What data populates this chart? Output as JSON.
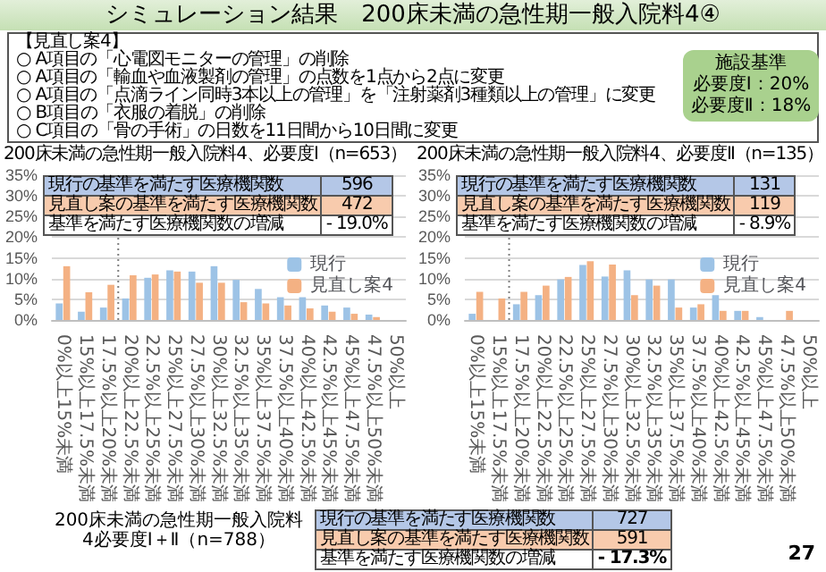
{
  "chart_data": [
    {
      "type": "other",
      "title": "シミュレーション結果　200床未満の急性期一般入院料4④",
      "annotations": [
        "【見直し案4】",
        "○ A項目の「心電図モニターの管理」の削除",
        "○ A項目の「輸血や血液製剤の管理」の点数を1点から2点に変更",
        "○ A項目の「点滴ライン同時3本以上の管理」を「注射薬剤3種類以上の管理」に変更",
        "○ B項目の「衣服の着脱」の削除",
        "○ C項目の「骨の手術」の日数を11日間から10日間に変更"
      ]
    },
    {
      "type": "other",
      "title": "施設基準",
      "annotations": [
        "必要度Ⅰ：20%",
        "必要度Ⅱ：18%"
      ]
    },
    {
      "type": "bar",
      "title": "200床未満の急性期一般入院料4、必要度Ⅰ（n=653）",
      "categories": [
        "0%以上15%未満",
        "15%以上17.5%未満",
        "17.5%以上20%未満",
        "20%以上22.5%未満",
        "22.5%以上25%未満",
        "25%以上27.5%未満",
        "27.5%以上30%未満",
        "30%以上32.5%未満",
        "32.5%以上35%未満",
        "35%以上37.5%未満",
        "37.5%以上40%未満",
        "40%以上42.5%未満",
        "42.5%以上45%未満",
        "45%以上47.5%未満",
        "47.5%以上50%未満",
        "50%以上"
      ],
      "series": [
        {
          "name": "現行",
          "color": "#9dc3e6",
          "values": [
            4,
            2,
            3,
            5.2,
            10.2,
            12,
            11.7,
            13,
            9.7,
            7.5,
            5.5,
            5.5,
            3.5,
            3,
            1.3,
            0
          ]
        },
        {
          "name": "見直し案4",
          "color": "#f4b183",
          "values": [
            13,
            6.7,
            8.5,
            10.8,
            11,
            11.7,
            9,
            9,
            4.3,
            4,
            3.5,
            2.8,
            2,
            1.5,
            0.7,
            0
          ]
        }
      ],
      "ylim": [
        0,
        35
      ],
      "yticks": [
        {
          "value": 0,
          "label": "0%"
        },
        {
          "value": 5,
          "label": "5%"
        },
        {
          "value": 10,
          "label": "10%"
        },
        {
          "value": 15,
          "label": "15%"
        },
        {
          "value": 20,
          "label": "20%"
        },
        {
          "value": 25,
          "label": "25%"
        },
        {
          "value": 30,
          "label": "30%"
        },
        {
          "value": 35,
          "label": "35%"
        }
      ],
      "grid": "y",
      "legend": "right",
      "ref_lines": [
        {
          "axis": "x",
          "value": "20%以上22.5%未満",
          "line_style": "dotted",
          "color": "#7f7f7f"
        }
      ],
      "annotations": [
        "現行の基準を満たす医療機関数",
        "596",
        "見直し案の基準を満たす医療機関数",
        "472",
        "基準を満たす医療機関数の増減",
        "- 19.0%"
      ]
    },
    {
      "type": "bar",
      "title": "200床未満の急性期一般入院料4、必要度Ⅱ（n=135）",
      "categories": [
        "0%以上15%未満",
        "15%以上17.5%未満",
        "17.5%以上20%未満",
        "20%以上22.5%未満",
        "22.5%以上25%未満",
        "25%以上27.5%未満",
        "27.5%以上30%未満",
        "30%以上32.5%未満",
        "32.5%以上35%未満",
        "35%以上37.5%未満",
        "37.5%以上40%未満",
        "40%以上42.5%未満",
        "42.5%以上45%未満",
        "45%以上47.5%未満",
        "47.5%以上50%未満",
        "50%以上"
      ],
      "series": [
        {
          "name": "現行",
          "color": "#9dc3e6",
          "values": [
            1.5,
            0,
            3.8,
            6,
            9.8,
            13.3,
            10.5,
            12,
            9.8,
            9.8,
            3,
            6,
            2.2,
            0.7,
            0,
            0
          ]
        },
        {
          "name": "見直し案4",
          "color": "#f4b183",
          "values": [
            6.8,
            5.2,
            6.8,
            8.3,
            10.4,
            14.2,
            13.4,
            6,
            8.3,
            3,
            3.8,
            2.2,
            2.2,
            0,
            2.2,
            0
          ]
        }
      ],
      "ylim": [
        0,
        35
      ],
      "yticks": [
        {
          "value": 0,
          "label": "0%"
        },
        {
          "value": 5,
          "label": "5%"
        },
        {
          "value": 10,
          "label": "10%"
        },
        {
          "value": 15,
          "label": "15%"
        },
        {
          "value": 20,
          "label": "20%"
        },
        {
          "value": 25,
          "label": "25%"
        },
        {
          "value": 30,
          "label": "30%"
        },
        {
          "value": 35,
          "label": "35%"
        }
      ],
      "grid": "y",
      "legend": "right",
      "ref_lines": [
        {
          "axis": "x",
          "value": "17.5%以上20%未満",
          "line_style": "dotted",
          "color": "#7f7f7f"
        }
      ],
      "annotations": [
        "現行の基準を満たす医療機関数",
        "131",
        "見直し案の基準を満たす医療機関数",
        "119",
        "基準を満たす医療機関数の増減",
        "- 8.9%"
      ]
    },
    {
      "type": "other",
      "title": "200床未満の急性期一般入院料4必要度Ⅰ＋Ⅱ（n=788）",
      "annotations": [
        "現行の基準を満たす医療機関数",
        "727",
        "見直し案の基準を満たす医療機関数",
        "591",
        "基準を満たす医療機関数の増減",
        "- 17.3%",
        "27"
      ]
    }
  ]
}
